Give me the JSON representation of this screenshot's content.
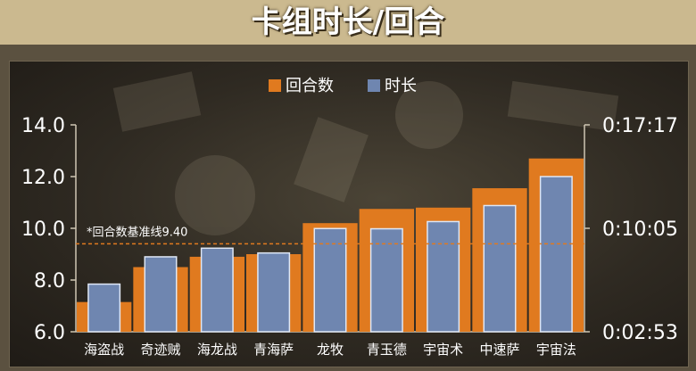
{
  "header": {
    "title": "卡组时长/回合"
  },
  "chart_data": {
    "type": "bar",
    "categories": [
      "海盗战",
      "奇迹贼",
      "海龙战",
      "青海萨",
      "龙牧",
      "青玉德",
      "宇宙术",
      "中速萨",
      "宇宙法"
    ],
    "series": [
      {
        "name": "回合数",
        "axis": "left",
        "color": "#e07a1f",
        "values": [
          7.15,
          8.5,
          8.9,
          9.0,
          10.2,
          10.75,
          10.8,
          11.55,
          12.7
        ]
      },
      {
        "name": "时长",
        "axis": "right",
        "color": "#6f86b0",
        "values": [
          "0:06:12",
          "0:08:06",
          "0:08:42",
          "0:08:22",
          "0:10:04",
          "0:10:03",
          "0:10:33",
          "0:11:40",
          "0:13:41"
        ]
      }
    ],
    "y_left": {
      "ticks": [
        "6.0",
        "8.0",
        "10.0",
        "12.0",
        "14.0"
      ],
      "range": [
        6.0,
        14.0
      ]
    },
    "y_right": {
      "ticks": [
        "0:02:53",
        "0:10:05",
        "0:17:17"
      ],
      "range": [
        "0:02:53",
        "0:17:17"
      ]
    },
    "reference_line": {
      "label": "*回合数基准线9.40",
      "value": 9.4
    },
    "legend_position": "top-center",
    "grid": false
  }
}
